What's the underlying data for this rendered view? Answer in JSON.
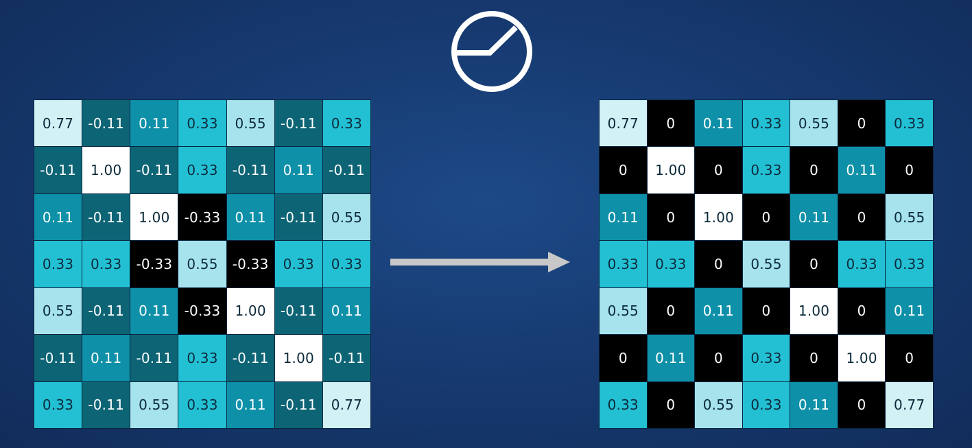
{
  "icons": {
    "relu": "relu-activation-icon",
    "arrow": "right-arrow-icon"
  },
  "colors": {
    "background": "#163a70",
    "arrow": "#c8c8c8",
    "icon_stroke": "#ffffff",
    "cell_min": "#000000",
    "cell_neg_small": "#0d6475",
    "cell_small": "#0e90a8",
    "cell_mid": "#23c0d4",
    "cell_high": "#a6e3ec",
    "cell_higher": "#d2f1f5",
    "cell_max": "#ffffff"
  },
  "input_matrix": [
    [
      "0.77",
      "-0.11",
      "0.11",
      "0.33",
      "0.55",
      "-0.11",
      "0.33"
    ],
    [
      "-0.11",
      "1.00",
      "-0.11",
      "0.33",
      "-0.11",
      "0.11",
      "-0.11"
    ],
    [
      "0.11",
      "-0.11",
      "1.00",
      "-0.33",
      "0.11",
      "-0.11",
      "0.55"
    ],
    [
      "0.33",
      "0.33",
      "-0.33",
      "0.55",
      "-0.33",
      "0.33",
      "0.33"
    ],
    [
      "0.55",
      "-0.11",
      "0.11",
      "-0.33",
      "1.00",
      "-0.11",
      "0.11"
    ],
    [
      "-0.11",
      "0.11",
      "-0.11",
      "0.33",
      "-0.11",
      "1.00",
      "-0.11"
    ],
    [
      "0.33",
      "-0.11",
      "0.55",
      "0.33",
      "0.11",
      "-0.11",
      "0.77"
    ]
  ],
  "output_matrix": [
    [
      "0.77",
      "0",
      "0.11",
      "0.33",
      "0.55",
      "0",
      "0.33"
    ],
    [
      "0",
      "1.00",
      "0",
      "0.33",
      "0",
      "0.11",
      "0"
    ],
    [
      "0.11",
      "0",
      "1.00",
      "0",
      "0.11",
      "0",
      "0.55"
    ],
    [
      "0.33",
      "0.33",
      "0",
      "0.55",
      "0",
      "0.33",
      "0.33"
    ],
    [
      "0.55",
      "0",
      "0.11",
      "0",
      "1.00",
      "0",
      "0.11"
    ],
    [
      "0",
      "0.11",
      "0",
      "0.33",
      "0",
      "1.00",
      "0"
    ],
    [
      "0.33",
      "0",
      "0.55",
      "0.33",
      "0.11",
      "0",
      "0.77"
    ]
  ]
}
